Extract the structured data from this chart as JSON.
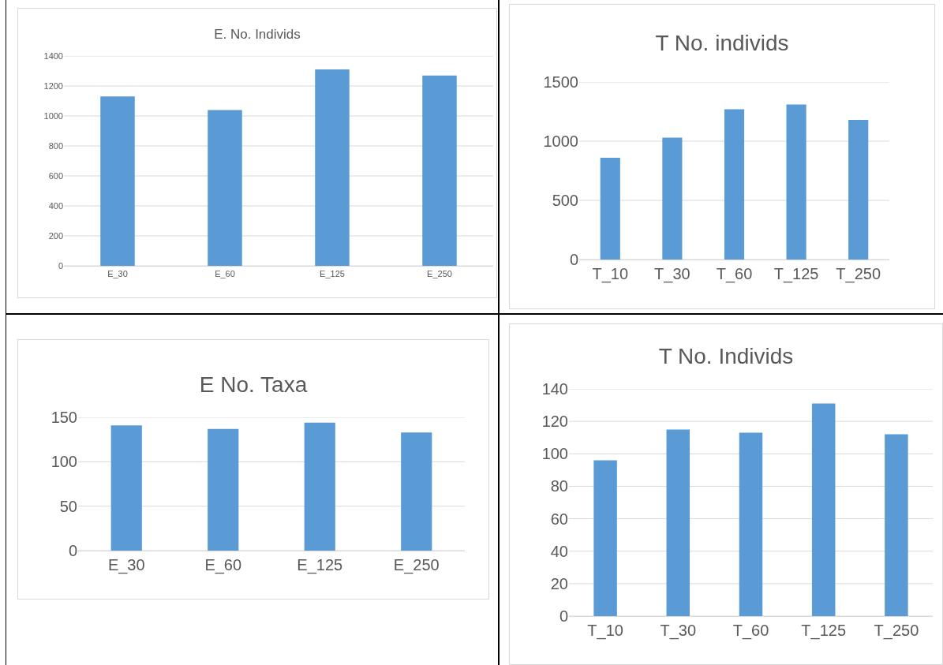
{
  "chart_data": [
    {
      "type": "bar",
      "title": "E. No. Individs",
      "categories": [
        "E_30",
        "E_60",
        "E_125",
        "E_250"
      ],
      "values": [
        1130,
        1040,
        1310,
        1270
      ],
      "color": "#5b9bd5",
      "ylim": [
        0,
        1400
      ],
      "yticks": [
        0,
        200,
        400,
        600,
        800,
        1000,
        1200,
        1400
      ],
      "grid": "y"
    },
    {
      "type": "bar",
      "title": "T No. individs",
      "categories": [
        "T_10",
        "T_30",
        "T_60",
        "T_125",
        "T_250"
      ],
      "values": [
        860,
        1030,
        1270,
        1310,
        1180
      ],
      "color": "#5b9bd5",
      "ylim": [
        0,
        1500
      ],
      "yticks": [
        0,
        500,
        1000,
        1500
      ],
      "grid": "y"
    },
    {
      "type": "bar",
      "title": "E No. Taxa",
      "categories": [
        "E_30",
        "E_60",
        "E_125",
        "E_250"
      ],
      "values": [
        141,
        137,
        144,
        133
      ],
      "color": "#5b9bd5",
      "ylim": [
        0,
        150
      ],
      "yticks": [
        0,
        50,
        100,
        150
      ],
      "grid": "y"
    },
    {
      "type": "bar",
      "title": "T No. Individs",
      "categories": [
        "T_10",
        "T_30",
        "T_60",
        "T_125",
        "T_250"
      ],
      "values": [
        96,
        115,
        113,
        131,
        112
      ],
      "color": "#5b9bd5",
      "ylim": [
        0,
        140
      ],
      "yticks": [
        0,
        20,
        40,
        60,
        80,
        100,
        120,
        140
      ],
      "grid": "y"
    }
  ]
}
